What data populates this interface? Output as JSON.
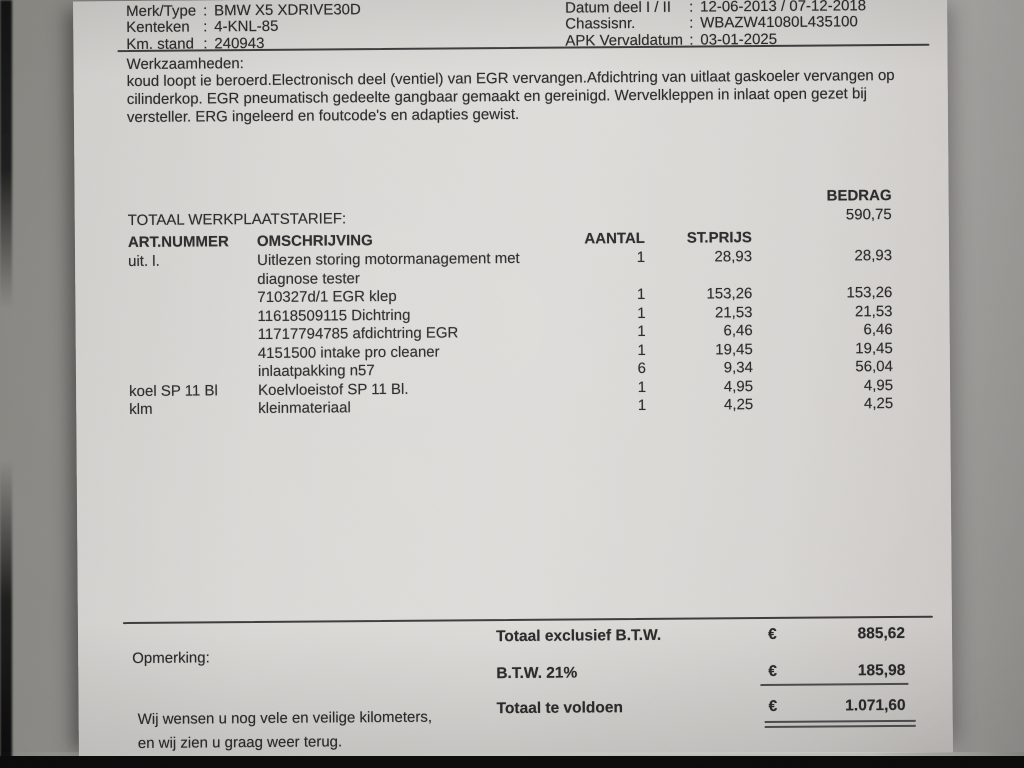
{
  "punct": {
    "colon": ":"
  },
  "vehicle": {
    "left": [
      {
        "label": "Merk/Type",
        "value": "BMW X5 XDRIVE30D"
      },
      {
        "label": "Kenteken",
        "value": "4-KNL-85"
      },
      {
        "label": "Km. stand",
        "value": "240943"
      }
    ],
    "right": [
      {
        "label": "Datum deel I / II",
        "value": "12-06-2013 / 07-12-2018"
      },
      {
        "label": "Chassisnr.",
        "value": "WBAZW41080L435100"
      },
      {
        "label": "APK Vervaldatum",
        "value": "03-01-2025"
      }
    ]
  },
  "work": {
    "title": "Werkzaamheden:",
    "description": "koud loopt ie beroerd.Electronisch deel (ventiel) van EGR vervangen.Afdichtring van uitlaat gaskoeler vervangen op\ncilinderkop. EGR pneumatisch gedeelte gangbaar gemaakt en gereinigd. Wervelkleppen in inlaat open gezet bij\nversteller. ERG ingeleerd en foutcode's en adapties gewist."
  },
  "invoice": {
    "bedrag_header": "BEDRAG",
    "labor": {
      "label": "TOTAAL WERKPLAATSTARIEF:",
      "amount": "590,75"
    },
    "columns": {
      "art": "ART.NUMMER",
      "oms": "OMSCHRIJVING",
      "qty": "AANTAL",
      "price": "ST.PRIJS"
    },
    "rows": [
      {
        "art": "uit. l.",
        "oms": "Uitlezen storing motormanagement met\ndiagnose tester",
        "qty": "1",
        "price": "28,93",
        "amount": "28,93"
      },
      {
        "art": "",
        "oms": "710327d/1 EGR klep",
        "qty": "1",
        "price": "153,26",
        "amount": "153,26"
      },
      {
        "art": "",
        "oms": "11618509115 Dichtring",
        "qty": "1",
        "price": "21,53",
        "amount": "21,53"
      },
      {
        "art": "",
        "oms": "11717794785 afdichtring EGR",
        "qty": "1",
        "price": "6,46",
        "amount": "6,46"
      },
      {
        "art": "",
        "oms": "4151500 intake pro cleaner",
        "qty": "1",
        "price": "19,45",
        "amount": "19,45"
      },
      {
        "art": "",
        "oms": "inlaatpakking n57",
        "qty": "6",
        "price": "9,34",
        "amount": "56,04"
      },
      {
        "art": "koel SP 11 Bl",
        "oms": "Koelvloeistof SP 11 Bl.",
        "qty": "1",
        "price": "4,95",
        "amount": "4,95"
      },
      {
        "art": "klm",
        "oms": "kleinmateriaal",
        "qty": "1",
        "price": "4,25",
        "amount": "4,25"
      }
    ],
    "totals": [
      {
        "label": "Totaal exclusief B.T.W.",
        "currency": "€",
        "amount": "885,62"
      },
      {
        "label": "B.T.W. 21%",
        "currency": "€",
        "amount": "185,98"
      },
      {
        "label": "Totaal te voldoen",
        "currency": "€",
        "amount": "1.071,60"
      }
    ],
    "remark_label": "Opmerking:",
    "closing": "Wij wensen u nog vele en veilige kilometers,\nen wij zien u graag weer terug."
  },
  "colors": {
    "paper": "#dedcd9",
    "ink": "#272727"
  }
}
